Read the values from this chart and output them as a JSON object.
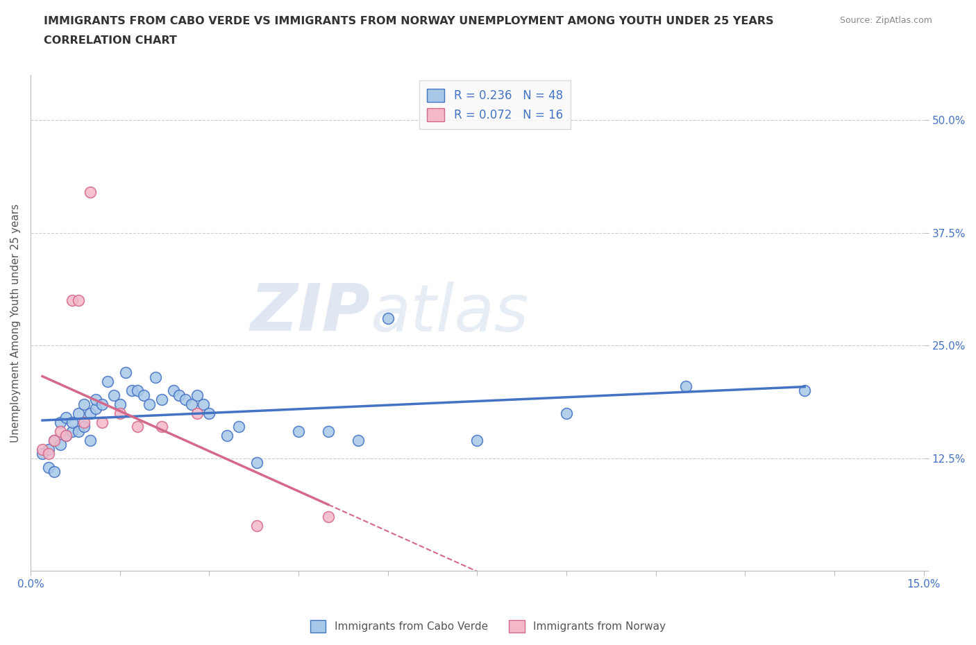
{
  "title_line1": "IMMIGRANTS FROM CABO VERDE VS IMMIGRANTS FROM NORWAY UNEMPLOYMENT AMONG YOUTH UNDER 25 YEARS",
  "title_line2": "CORRELATION CHART",
  "source": "Source: ZipAtlas.com",
  "ylabel": "Unemployment Among Youth under 25 years",
  "xlim": [
    0.0,
    0.15
  ],
  "ylim": [
    0.0,
    0.55
  ],
  "r_cabo": 0.236,
  "n_cabo": 48,
  "r_norway": 0.072,
  "n_norway": 16,
  "cabo_color": "#a8c8e8",
  "cabo_color_dark": "#4472c4",
  "norway_color": "#f4b8c8",
  "norway_color_dark": "#d4698a",
  "cabo_x": [
    0.002,
    0.003,
    0.003,
    0.004,
    0.004,
    0.005,
    0.005,
    0.006,
    0.006,
    0.007,
    0.007,
    0.008,
    0.008,
    0.009,
    0.009,
    0.01,
    0.01,
    0.011,
    0.011,
    0.012,
    0.013,
    0.014,
    0.015,
    0.016,
    0.017,
    0.018,
    0.019,
    0.02,
    0.021,
    0.022,
    0.024,
    0.025,
    0.026,
    0.027,
    0.028,
    0.029,
    0.03,
    0.033,
    0.035,
    0.038,
    0.045,
    0.05,
    0.055,
    0.06,
    0.075,
    0.09,
    0.11,
    0.13
  ],
  "cabo_y": [
    0.13,
    0.135,
    0.115,
    0.145,
    0.11,
    0.14,
    0.165,
    0.15,
    0.17,
    0.155,
    0.165,
    0.155,
    0.175,
    0.16,
    0.185,
    0.175,
    0.145,
    0.18,
    0.19,
    0.185,
    0.21,
    0.195,
    0.185,
    0.22,
    0.2,
    0.2,
    0.195,
    0.185,
    0.215,
    0.19,
    0.2,
    0.195,
    0.19,
    0.185,
    0.195,
    0.185,
    0.175,
    0.15,
    0.16,
    0.12,
    0.155,
    0.155,
    0.145,
    0.28,
    0.145,
    0.175,
    0.205,
    0.2
  ],
  "norway_x": [
    0.002,
    0.003,
    0.004,
    0.005,
    0.006,
    0.007,
    0.008,
    0.009,
    0.01,
    0.012,
    0.015,
    0.018,
    0.022,
    0.028,
    0.038,
    0.05
  ],
  "norway_y": [
    0.135,
    0.13,
    0.145,
    0.155,
    0.15,
    0.3,
    0.3,
    0.165,
    0.42,
    0.165,
    0.175,
    0.16,
    0.16,
    0.175,
    0.05,
    0.06
  ],
  "watermark_bold": "ZIP",
  "watermark_light": "atlas",
  "background_color": "#ffffff"
}
